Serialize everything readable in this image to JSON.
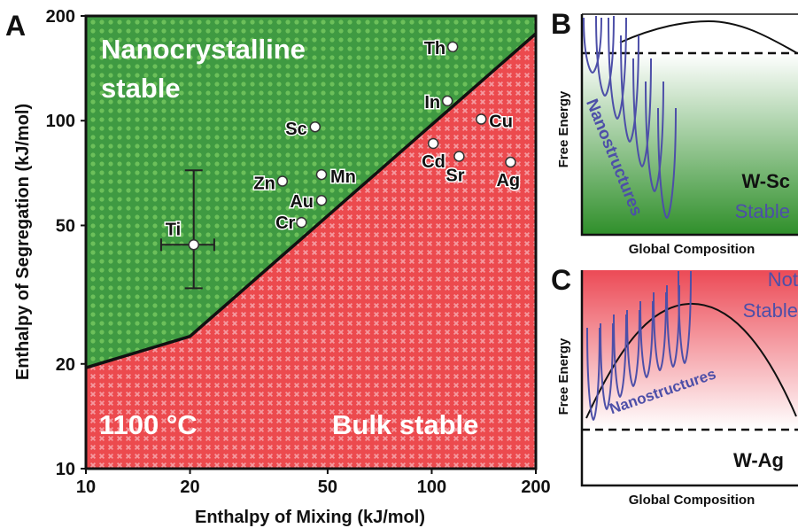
{
  "panel_a": {
    "letter": "A",
    "region_top_label": [
      "Nanocrystalline",
      "stable"
    ],
    "region_bottom_label": "Bulk stable",
    "temperature_label": "1100 °C"
  },
  "panel_b": {
    "letter": "B",
    "ylabel": "Free Energy",
    "xlabel": "Global Composition",
    "system": "W-Sc",
    "status": "Stable",
    "curve_label": "Nanostructures"
  },
  "panel_c": {
    "letter": "C",
    "ylabel": "Free Energy",
    "xlabel": "Global Composition",
    "system": "W-Ag",
    "status": [
      "Not",
      "Stable"
    ],
    "curve_label": "Nanostructures"
  },
  "colors": {
    "green_region": "#3f9a42",
    "green_dot": "#6cc05a",
    "red_region": "#ec4a4e",
    "red_cross": "#f59aa0",
    "boundary": "#111111",
    "curves": "#4d4fa8",
    "point_fill": "#ffffff"
  },
  "chart_data": [
    {
      "type": "scatter",
      "xlabel": "Enthalpy of Mixing (kJ/mol)",
      "ylabel": "Enthalpy of Segregation (kJ/mol)",
      "xscale": "log",
      "yscale": "log",
      "xlim": [
        10,
        200
      ],
      "ylim": [
        10,
        200
      ],
      "xticks": [
        10,
        20,
        50,
        100,
        200
      ],
      "yticks": [
        10,
        20,
        50,
        100,
        200
      ],
      "points": [
        {
          "label": "Th",
          "x": 115,
          "y": 163
        },
        {
          "label": "In",
          "x": 111,
          "y": 114
        },
        {
          "label": "Sc",
          "x": 46,
          "y": 96
        },
        {
          "label": "Cu",
          "x": 139,
          "y": 101
        },
        {
          "label": "Cd",
          "x": 101,
          "y": 86
        },
        {
          "label": "Sr",
          "x": 120,
          "y": 79
        },
        {
          "label": "Ag",
          "x": 169,
          "y": 76
        },
        {
          "label": "Mn",
          "x": 48,
          "y": 70
        },
        {
          "label": "Zn",
          "x": 37,
          "y": 67
        },
        {
          "label": "Au",
          "x": 48,
          "y": 59
        },
        {
          "label": "Cr",
          "x": 42,
          "y": 51
        },
        {
          "label": "Ti",
          "x": 20.5,
          "y": 44,
          "xerr": [
            16.5,
            23.5
          ],
          "yerr": [
            33,
            72
          ]
        }
      ],
      "boundary": [
        {
          "x": 10,
          "y": 19.5
        },
        {
          "x": 20,
          "y": 24
        },
        {
          "x": 200,
          "y": 178
        }
      ]
    },
    {
      "type": "line",
      "xlabel": "Global Composition",
      "ylabel": "Free Energy",
      "series": [
        {
          "name": "W-Sc"
        },
        {
          "name": "Nanostructures"
        }
      ]
    },
    {
      "type": "line",
      "xlabel": "Global Composition",
      "ylabel": "Free Energy",
      "series": [
        {
          "name": "W-Ag"
        },
        {
          "name": "Nanostructures"
        }
      ]
    }
  ]
}
